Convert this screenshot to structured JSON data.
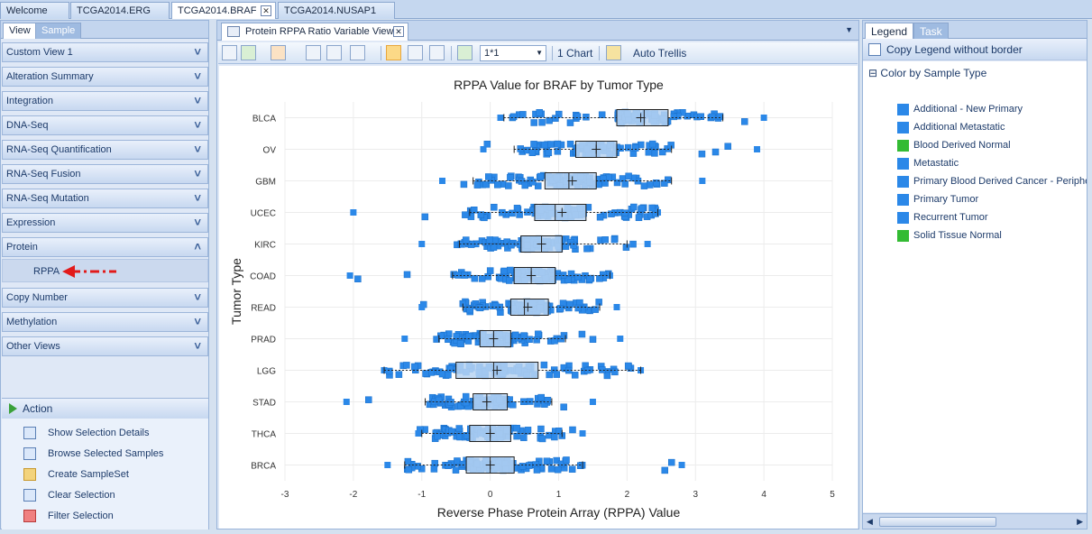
{
  "doc_tabs": [
    "Welcome",
    "TCGA2014.ERG",
    "TCGA2014.BRAF",
    "TCGA2014.NUSAP1"
  ],
  "doc_tab_close": "✕",
  "left_tabs": [
    "View",
    "Sample"
  ],
  "nav_items": [
    "Custom View 1",
    "Alteration Summary",
    "Integration",
    "DNA-Seq",
    "RNA-Seq Quantification",
    "RNA-Seq Fusion",
    "RNA-Seq Mutation",
    "Expression",
    "Protein",
    "Copy Number",
    "Methylation",
    "Other Views"
  ],
  "protein_subitem": "RPPA",
  "action": {
    "title": "Action",
    "items": [
      "Show Selection Details",
      "Browse Selected Samples",
      "Create SampleSet",
      "Clear Selection",
      "Filter Selection"
    ]
  },
  "view_tab": {
    "label": "Protein RPPA Ratio Variable View",
    "close": "✕"
  },
  "toolbar": {
    "layout_value": "1*1",
    "chart_count": "1 Chart",
    "trellis_label": "Auto Trellis"
  },
  "chart_data": {
    "type": "box",
    "title": "RPPA Value for BRAF by Tumor Type",
    "xlabel": "Reverse Phase Protein Array (RPPA) Value",
    "ylabel": "Tumor Type",
    "xlim": [
      -3,
      5
    ],
    "xticks": [
      "-3",
      "-2",
      "-1",
      "0",
      "1",
      "2",
      "3",
      "4",
      "5"
    ],
    "grid": true,
    "color": "#2b88e8",
    "categories": [
      "BLCA",
      "OV",
      "GBM",
      "UCEC",
      "KIRC",
      "COAD",
      "READ",
      "PRAD",
      "LGG",
      "STAD",
      "THCA",
      "BRCA"
    ],
    "series": [
      {
        "category": "BLCA",
        "min": 0.2,
        "q1": 1.85,
        "median": 2.25,
        "mean": 2.2,
        "q3": 2.6,
        "max": 3.4,
        "span": [
          0.15,
          4.0
        ]
      },
      {
        "category": "OV",
        "min": 0.35,
        "q1": 1.25,
        "median": 1.55,
        "mean": 1.55,
        "q3": 1.85,
        "max": 2.65,
        "span": [
          -0.1,
          3.9
        ]
      },
      {
        "category": "GBM",
        "min": -0.25,
        "q1": 0.8,
        "median": 1.15,
        "mean": 1.2,
        "q3": 1.55,
        "max": 2.65,
        "span": [
          -0.7,
          3.1
        ]
      },
      {
        "category": "UCEC",
        "min": -0.3,
        "q1": 0.65,
        "median": 0.95,
        "mean": 1.05,
        "q3": 1.4,
        "max": 2.45,
        "span": [
          -2.0,
          2.45
        ]
      },
      {
        "category": "KIRC",
        "min": -0.45,
        "q1": 0.45,
        "median": 0.75,
        "mean": 0.75,
        "q3": 1.05,
        "max": 2.0,
        "span": [
          -1.0,
          2.3
        ]
      },
      {
        "category": "COAD",
        "min": -0.55,
        "q1": 0.35,
        "median": 0.6,
        "mean": 0.6,
        "q3": 0.95,
        "max": 1.75,
        "span": [
          -2.05,
          1.75
        ]
      },
      {
        "category": "READ",
        "min": -0.4,
        "q1": 0.3,
        "median": 0.5,
        "mean": 0.55,
        "q3": 0.85,
        "max": 1.6,
        "span": [
          -1.0,
          1.85
        ]
      },
      {
        "category": "PRAD",
        "min": -0.75,
        "q1": -0.15,
        "median": 0.05,
        "mean": 0.05,
        "q3": 0.3,
        "max": 1.1,
        "span": [
          -1.25,
          1.9
        ]
      },
      {
        "category": "LGG",
        "min": -1.55,
        "q1": -0.5,
        "median": 0.05,
        "mean": 0.1,
        "q3": 0.7,
        "max": 2.2,
        "span": [
          -1.55,
          2.2
        ]
      },
      {
        "category": "STAD",
        "min": -0.95,
        "q1": -0.25,
        "median": -0.05,
        "mean": -0.05,
        "q3": 0.25,
        "max": 0.9,
        "span": [
          -2.1,
          1.5
        ]
      },
      {
        "category": "THCA",
        "min": -1.0,
        "q1": -0.3,
        "median": 0.0,
        "mean": 0.0,
        "q3": 0.3,
        "max": 1.05,
        "span": [
          -1.05,
          1.35
        ]
      },
      {
        "category": "BRCA",
        "min": -1.25,
        "q1": -0.35,
        "median": 0.0,
        "mean": 0.0,
        "q3": 0.35,
        "max": 1.35,
        "span": [
          -1.5,
          2.8
        ]
      }
    ]
  },
  "legend": {
    "tabs": [
      "Legend",
      "Task"
    ],
    "copy_label": "Copy Legend  without border",
    "group_title": "Color by Sample Type",
    "collapse_symbol": "⊟",
    "entries": [
      {
        "label": "Additional - New Primary",
        "color": "#2b88e8"
      },
      {
        "label": "Additional Metastatic",
        "color": "#2b88e8"
      },
      {
        "label": "Blood Derived Normal",
        "color": "#33bb33"
      },
      {
        "label": "Metastatic",
        "color": "#2b88e8"
      },
      {
        "label": "Primary Blood Derived Cancer - Peripheral Blood",
        "color": "#2b88e8"
      },
      {
        "label": "Primary Tumor",
        "color": "#2b88e8"
      },
      {
        "label": "Recurrent Tumor",
        "color": "#2b88e8"
      },
      {
        "label": "Solid Tissue Normal",
        "color": "#33bb33"
      }
    ]
  }
}
